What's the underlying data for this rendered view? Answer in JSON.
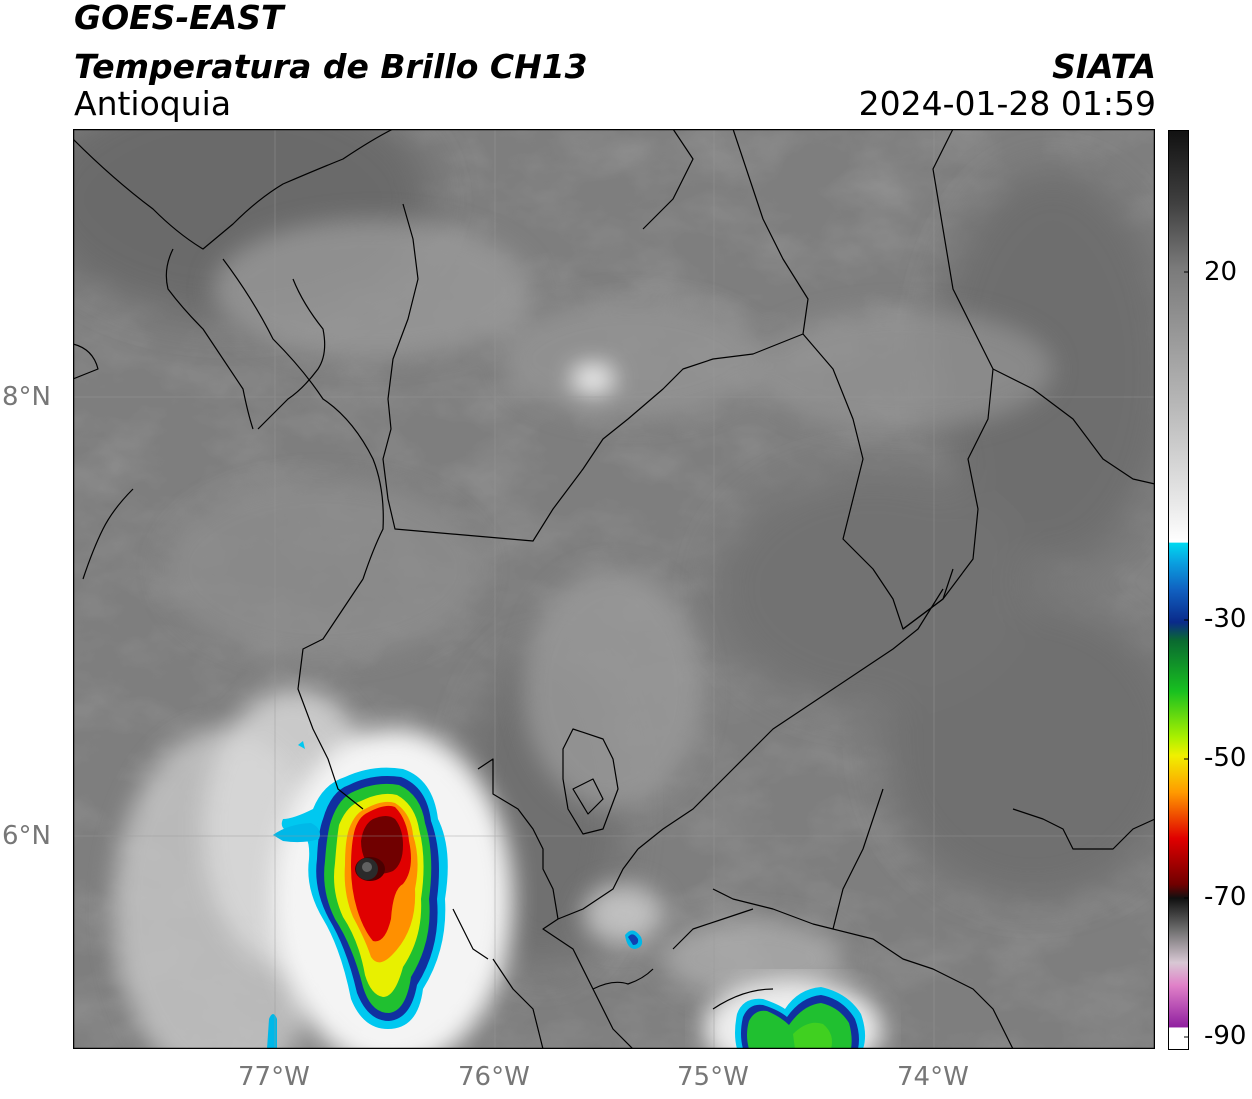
{
  "header": {
    "satellite": "GOES-EAST",
    "product": "Temperatura de Brillo CH13",
    "region": "Antioquia",
    "agency": "SIATA",
    "datetime": "2024-01-28 01:59"
  },
  "map": {
    "lat_ticks": [
      "8°N",
      "6°N"
    ],
    "lon_ticks": [
      "77°W",
      "76°W",
      "75°W",
      "74°W"
    ]
  },
  "colorbar": {
    "tick_labels": [
      "20",
      "-30",
      "-50",
      "-70",
      "-90"
    ],
    "colors": {
      "warm_gray": "#7a7a7a",
      "white": "#ffffff",
      "cyan": "#00d9f0",
      "blue": "#0a2a9a",
      "green": "#18c020",
      "yellow": "#f0f000",
      "orange": "#ff9a00",
      "red": "#e00000",
      "dark_red": "#700000",
      "black": "#101010",
      "pink": "#e080c8",
      "magenta": "#9020a0"
    }
  }
}
